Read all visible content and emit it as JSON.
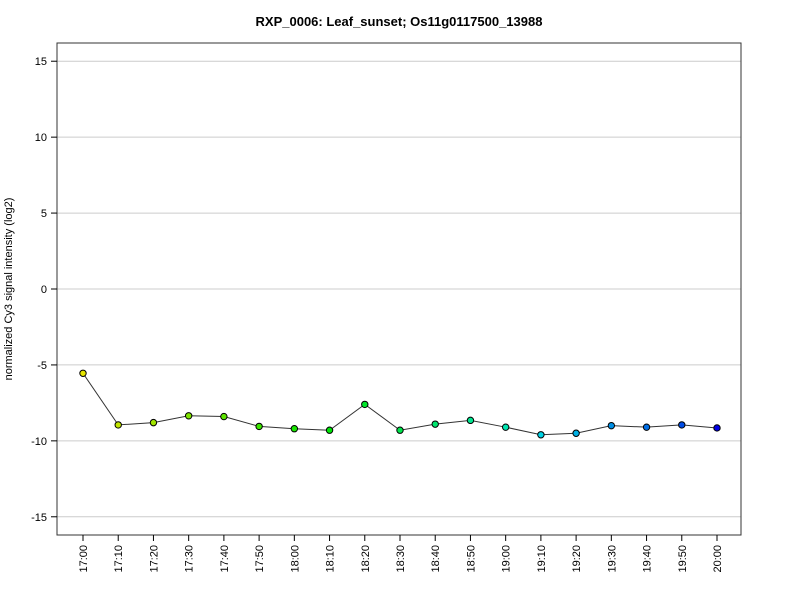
{
  "chart_data": {
    "type": "line",
    "title": "RXP_0006: Leaf_sunset; Os11g0117500_13988",
    "xlabel": "",
    "ylabel": "normalized Cy3 signal intensity (log2)",
    "categories": [
      "17:00",
      "17:10",
      "17:20",
      "17:30",
      "17:40",
      "17:50",
      "18:00",
      "18:10",
      "18:20",
      "18:30",
      "18:40",
      "18:50",
      "19:00",
      "19:10",
      "19:20",
      "19:30",
      "19:40",
      "19:50",
      "20:00"
    ],
    "series": [
      {
        "values": [
          -5.55,
          -8.95,
          -8.8,
          -8.35,
          -8.4,
          -9.05,
          -9.2,
          -9.3,
          -7.6,
          -9.3,
          -8.9,
          -8.65,
          -9.1,
          -9.6,
          -9.5,
          -9.0,
          -9.1,
          -8.95,
          -9.15
        ],
        "point_colors": [
          "#e5e500",
          "#c2e500",
          "#a1e500",
          "#7fe500",
          "#5de500",
          "#3be500",
          "#19e500",
          "#00e508",
          "#00e52a",
          "#00e54c",
          "#00e56e",
          "#00e590",
          "#00e5b1",
          "#00d3e5",
          "#00b1e5",
          "#008fe5",
          "#006ee5",
          "#004ce5",
          "#0000e5"
        ]
      }
    ],
    "ylim": [
      -16.2,
      16.2
    ],
    "yticks": [
      -15,
      -10,
      -5,
      0,
      5,
      10,
      15
    ],
    "grid": true,
    "legend": "none",
    "colors": {
      "line": "#333333",
      "grid": "#cccccc",
      "frame": "#333333"
    }
  }
}
